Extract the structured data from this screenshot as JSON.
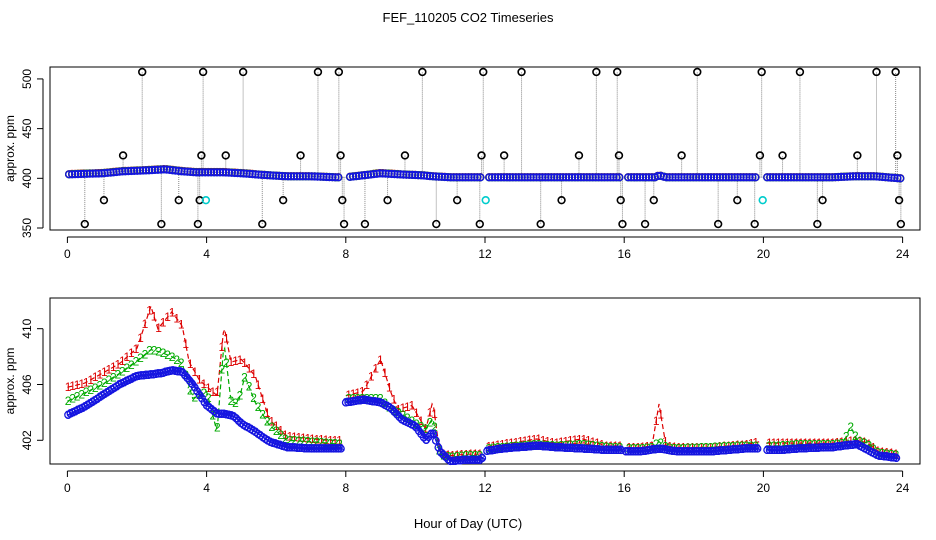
{
  "title": "FEF_110205  CO2 Timeseries",
  "xlabel": "Hour of Day (UTC)",
  "colors": {
    "ring_black": "#000000",
    "ring_red": "#dd0000",
    "ring_green": "#00aa00",
    "ring_blue": "#1515e0",
    "ring_cyan": "#00cccc",
    "series1": "#dd0000",
    "series2": "#00aa00",
    "series3": "#1515e0",
    "connector": "#888888"
  },
  "chart_data": [
    {
      "type": "scatter",
      "name": "raw-timeseries",
      "title": "FEF_110205  CO2 Timeseries",
      "xlabel": "Hour of Day (UTC)",
      "ylabel": "approx. ppm",
      "xlim": [
        -0.5,
        24.5
      ],
      "ylim": [
        348,
        512
      ],
      "xticks": [
        0,
        4,
        8,
        12,
        16,
        20,
        24
      ],
      "xtick_labels": [
        "0",
        "4",
        "8",
        "12",
        "16",
        "20",
        "24"
      ],
      "yticks": [
        350,
        400,
        450,
        500
      ],
      "ytick_labels": [
        "350",
        "400",
        "450",
        "500"
      ],
      "baseline": {
        "hours": [
          0.05,
          1.0,
          1.6,
          2.3,
          2.8,
          3.3,
          3.7,
          4.5,
          5.0,
          5.4,
          5.8,
          6.3,
          7.0,
          7.7,
          8.0,
          9.0,
          9.5,
          10.2,
          10.5,
          11.0,
          11.9,
          12.0,
          12.8,
          13.5,
          14.0,
          14.8,
          15.5,
          15.9,
          16.9,
          17.0,
          17.2,
          18.0,
          18.5,
          19.0,
          19.8,
          20.0,
          21.0,
          22.0,
          22.6,
          23.2,
          23.9
        ],
        "values": [
          404,
          405,
          407,
          408,
          409,
          407,
          406,
          406,
          405,
          404,
          403,
          402,
          402,
          401,
          401,
          405,
          404,
          403,
          402,
          401,
          401,
          401,
          401,
          401,
          401,
          401,
          401,
          401,
          401,
          403,
          401,
          401,
          401,
          401,
          401,
          401,
          401,
          401,
          402,
          402,
          400
        ]
      },
      "high_spikes": [
        2.15,
        3.9,
        5.05,
        7.2,
        7.8,
        10.2,
        11.95,
        13.05,
        15.2,
        15.8,
        18.1,
        19.95,
        21.05,
        23.25,
        23.8
      ],
      "mid_spikes": [
        1.6,
        3.85,
        4.55,
        6.7,
        7.85,
        9.7,
        11.9,
        12.55,
        14.7,
        15.85,
        17.65,
        19.9,
        20.55,
        22.7,
        23.85
      ],
      "low_spikes": [
        1.05,
        3.2,
        3.8,
        6.2,
        7.9,
        9.2,
        11.2,
        14.2,
        15.9,
        16.85,
        19.25,
        21.7,
        23.9
      ],
      "min_spikes": [
        0.5,
        2.7,
        3.75,
        5.6,
        7.95,
        8.55,
        10.6,
        11.85,
        13.6,
        15.95,
        16.6,
        18.7,
        19.75,
        21.55,
        23.95
      ],
      "cyan_points": [
        {
          "hour": 3.98,
          "value": 378
        },
        {
          "hour": 12.02,
          "value": 378
        },
        {
          "hour": 19.98,
          "value": 378
        }
      ]
    },
    {
      "type": "line",
      "name": "filtered-timeseries",
      "ylabel": "approx. ppm",
      "xlim": [
        -0.5,
        24.5
      ],
      "ylim": [
        400.3,
        412.2
      ],
      "xticks": [
        0,
        4,
        8,
        12,
        16,
        20,
        24
      ],
      "xtick_labels": [
        "0",
        "4",
        "8",
        "12",
        "16",
        "20",
        "24"
      ],
      "yticks": [
        402,
        406,
        410
      ],
      "ytick_labels": [
        "402",
        "406",
        "410"
      ],
      "gaps": [
        [
          7.9,
          8.0
        ],
        [
          11.95,
          12.05
        ],
        [
          15.95,
          16.05
        ],
        [
          19.9,
          20.05
        ]
      ],
      "series": [
        {
          "name": "1",
          "hours": [
            0.0,
            0.5,
            1.0,
            1.5,
            2.0,
            2.4,
            2.6,
            3.0,
            3.3,
            3.5,
            3.8,
            4.3,
            4.5,
            4.7,
            5.0,
            5.4,
            5.8,
            6.3,
            7.0,
            7.5,
            7.9,
            8.0,
            8.5,
            9.0,
            9.3,
            9.5,
            9.9,
            10.3,
            10.5,
            10.7,
            11.0,
            11.5,
            11.9,
            12.0,
            12.5,
            13.0,
            13.5,
            14.0,
            14.8,
            15.5,
            15.9,
            16.0,
            16.5,
            16.8,
            17.0,
            17.2,
            17.5,
            18.5,
            19.5,
            19.9,
            20.0,
            20.5,
            21.0,
            22.0,
            22.3,
            22.7,
            23.0,
            23.3,
            23.9
          ],
          "values": [
            405.8,
            406.1,
            406.8,
            407.5,
            408.6,
            411.6,
            410.0,
            411.2,
            410.2,
            407.6,
            406.3,
            405.2,
            410.2,
            407.6,
            407.8,
            406.6,
            403.5,
            402.3,
            402.1,
            402.0,
            402.0,
            405.2,
            405.5,
            407.8,
            405.4,
            404.2,
            404.5,
            402.8,
            404.8,
            401.1,
            400.9,
            401.0,
            401.0,
            401.5,
            401.7,
            401.9,
            402.1,
            401.8,
            402.1,
            401.6,
            401.6,
            401.5,
            401.5,
            401.6,
            404.6,
            401.6,
            401.5,
            401.5,
            401.7,
            401.9,
            401.8,
            401.8,
            401.8,
            401.8,
            401.9,
            402.0,
            401.8,
            401.2,
            401.0
          ]
        },
        {
          "name": "2",
          "hours": [
            0.0,
            0.5,
            1.0,
            1.5,
            2.0,
            2.4,
            2.7,
            3.0,
            3.3,
            3.6,
            4.0,
            4.3,
            4.5,
            4.7,
            4.9,
            5.1,
            5.4,
            5.8,
            6.3,
            7.0,
            7.5,
            7.9,
            8.0,
            8.5,
            9.0,
            9.3,
            9.6,
            10.0,
            10.3,
            10.5,
            10.7,
            11.0,
            11.5,
            11.9,
            12.0,
            12.5,
            13.0,
            13.5,
            14.0,
            14.8,
            15.5,
            15.9,
            16.0,
            16.5,
            16.8,
            17.0,
            17.2,
            17.5,
            18.5,
            19.5,
            19.9,
            20.0,
            20.5,
            21.0,
            22.0,
            22.3,
            22.5,
            22.7,
            23.0,
            23.3,
            23.9
          ],
          "values": [
            404.8,
            405.4,
            406.0,
            406.8,
            407.7,
            408.5,
            408.3,
            408.0,
            407.5,
            405.0,
            405.5,
            402.6,
            409.0,
            404.8,
            404.6,
            406.6,
            404.7,
            403.1,
            402.0,
            401.9,
            401.8,
            401.7,
            405.0,
            405.0,
            405.0,
            404.2,
            403.9,
            403.2,
            402.8,
            403.6,
            401.0,
            400.8,
            400.9,
            400.9,
            401.4,
            401.5,
            401.6,
            401.7,
            401.6,
            401.7,
            401.5,
            401.5,
            401.4,
            401.4,
            401.5,
            401.9,
            401.5,
            401.4,
            401.5,
            401.6,
            401.6,
            401.6,
            401.6,
            401.7,
            401.7,
            401.8,
            403.0,
            402.0,
            401.7,
            401.1,
            400.9
          ]
        },
        {
          "name": "3",
          "hours": [
            0.0,
            0.5,
            1.0,
            1.5,
            2.0,
            2.4,
            2.7,
            3.0,
            3.3,
            3.6,
            4.0,
            4.3,
            4.5,
            4.8,
            5.0,
            5.4,
            5.8,
            6.3,
            7.0,
            7.5,
            7.9,
            8.0,
            8.5,
            9.0,
            9.3,
            9.6,
            10.0,
            10.3,
            10.5,
            10.7,
            11.0,
            11.5,
            11.9,
            12.0,
            12.5,
            13.0,
            13.5,
            14.0,
            14.8,
            15.5,
            15.9,
            16.0,
            16.5,
            17.0,
            17.5,
            18.5,
            19.5,
            19.9,
            20.0,
            20.5,
            21.0,
            22.0,
            22.3,
            22.7,
            23.0,
            23.3,
            23.9
          ],
          "values": [
            403.8,
            404.4,
            405.2,
            406.0,
            406.6,
            406.7,
            406.8,
            407.0,
            406.9,
            406.0,
            404.5,
            403.9,
            403.9,
            403.7,
            403.2,
            402.6,
            401.9,
            401.5,
            401.4,
            401.4,
            401.4,
            404.7,
            404.9,
            404.7,
            404.3,
            403.5,
            403.0,
            402.0,
            402.6,
            401.2,
            400.5,
            400.6,
            400.6,
            401.2,
            401.4,
            401.5,
            401.6,
            401.5,
            401.4,
            401.3,
            401.3,
            401.2,
            401.2,
            401.4,
            401.2,
            401.2,
            401.4,
            401.4,
            401.3,
            401.3,
            401.4,
            401.5,
            401.6,
            401.7,
            401.3,
            400.9,
            400.7
          ]
        }
      ]
    }
  ]
}
